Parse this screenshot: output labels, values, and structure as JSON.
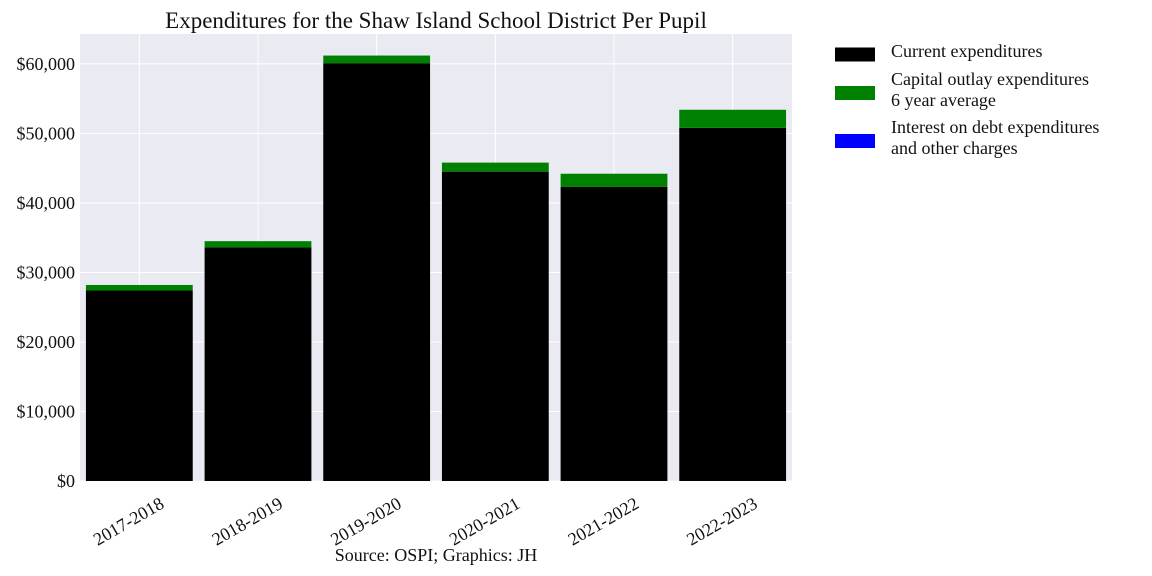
{
  "chart_data": {
    "type": "bar",
    "stacked": true,
    "title": "Expenditures for the Shaw Island School District Per Pupil",
    "xlabel": "",
    "ylabel": "",
    "source_note": "Source: OSPI; Graphics: JH",
    "categories": [
      "2017-2018",
      "2018-2019",
      "2019-2020",
      "2020-2021",
      "2021-2022",
      "2022-2023"
    ],
    "series": [
      {
        "name": "Current expenditures",
        "color": "#000000",
        "values": [
          27400,
          33600,
          60100,
          44500,
          42300,
          50800
        ]
      },
      {
        "name": "Capital outlay expenditures\n6 year average",
        "color": "#008000",
        "values": [
          800,
          900,
          1100,
          1300,
          1900,
          2600
        ]
      },
      {
        "name": "Interest on debt expenditures\nand other charges",
        "color": "#0000ff",
        "values": [
          0,
          0,
          0,
          0,
          0,
          0
        ]
      }
    ],
    "ylim": [
      0,
      64300
    ],
    "yticks": [
      0,
      10000,
      20000,
      30000,
      40000,
      50000,
      60000
    ],
    "ytick_labels": [
      "$0",
      "$10,000",
      "$20,000",
      "$30,000",
      "$40,000",
      "$50,000",
      "$60,000"
    ],
    "grid": true,
    "background": "#eaeaf2",
    "legend_position": "outside-top-right"
  }
}
